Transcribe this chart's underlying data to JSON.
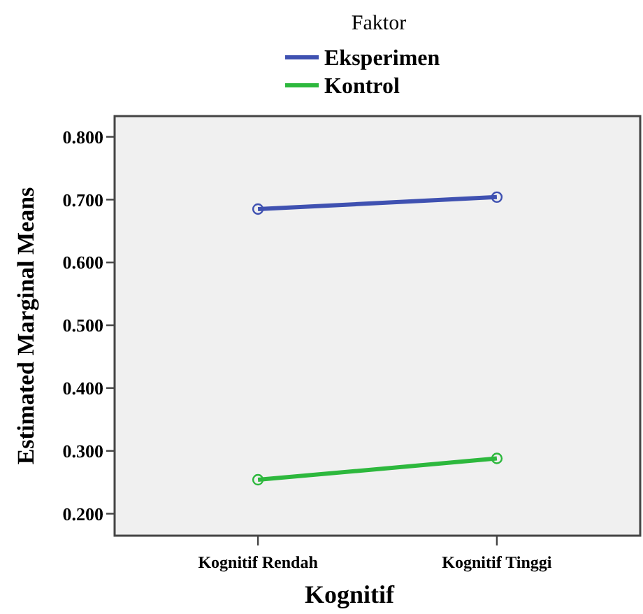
{
  "chart_data": {
    "type": "line",
    "categories": [
      "Kognitif Rendah",
      "Kognitif Tinggi"
    ],
    "series": [
      {
        "name": "Eksperimen",
        "color": "#3f51b1",
        "values": [
          0.685,
          0.704
        ]
      },
      {
        "name": "Kontrol",
        "color": "#2db83d",
        "values": [
          0.254,
          0.288
        ]
      }
    ],
    "xlabel": "Kognitif",
    "ylabel": "Estimated Marginal Means",
    "legend_title": "Faktor",
    "ylim": [
      0.165,
      0.833
    ],
    "yticks": [
      {
        "value": 0.2,
        "label": "0.200"
      },
      {
        "value": 0.3,
        "label": "0.300"
      },
      {
        "value": 0.4,
        "label": "0.400"
      },
      {
        "value": 0.5,
        "label": "0.500"
      },
      {
        "value": 0.6,
        "label": "0.600"
      },
      {
        "value": 0.7,
        "label": "0.700"
      },
      {
        "value": 0.8,
        "label": "0.800"
      }
    ],
    "grid": false,
    "legend": "top",
    "marker": "circle",
    "line_style": "solid"
  }
}
